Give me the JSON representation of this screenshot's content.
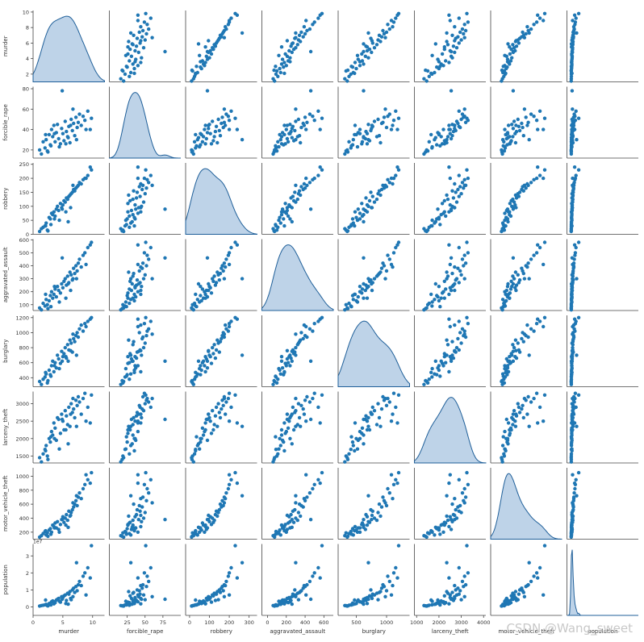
{
  "chart_data": {
    "type": "pairplot",
    "point_color": "#1f77b4",
    "kde_fill": "#a8c4e0",
    "kde_line": "#1f5f99",
    "variables": [
      {
        "name": "murder",
        "range": [
          0,
          12
        ],
        "ticks": [
          0,
          5,
          10
        ],
        "ylabel": "murder",
        "yticks": [
          2,
          4,
          6,
          8,
          10
        ],
        "ylim": [
          1,
          10.2
        ]
      },
      {
        "name": "forcible_rape",
        "range": [
          0,
          100
        ],
        "ticks": [
          25,
          50,
          75
        ],
        "ylabel": "forcible_rape",
        "yticks": [
          20,
          40,
          60,
          80
        ],
        "ylim": [
          12,
          82
        ]
      },
      {
        "name": "robbery",
        "range": [
          -20,
          340
        ],
        "ticks": [
          0,
          100,
          200,
          300
        ],
        "ylabel": "robbery",
        "yticks": [
          0,
          50,
          100,
          150,
          200,
          250
        ],
        "ylim": [
          0,
          255
        ]
      },
      {
        "name": "aggravated_assault",
        "range": [
          -60,
          700
        ],
        "ticks": [
          0,
          200,
          400,
          600
        ],
        "ylabel": "aggravated_assault",
        "yticks": [
          100,
          200,
          300,
          400,
          500,
          600
        ],
        "ylim": [
          55,
          605
        ]
      },
      {
        "name": "burglary",
        "range": [
          200,
          1380
        ],
        "ticks": [
          500,
          1000
        ],
        "ylabel": "burglary",
        "yticks": [
          400,
          600,
          800,
          1000,
          1200
        ],
        "ylim": [
          280,
          1230
        ]
      },
      {
        "name": "larceny_theft",
        "range": [
          900,
          4100
        ],
        "ticks": [
          1000,
          2000,
          3000,
          4000
        ],
        "ylabel": "larceny_theft",
        "yticks": [
          1500,
          2000,
          2500,
          3000
        ],
        "ylim": [
          1300,
          3350
        ]
      },
      {
        "name": "motor_vehicle_theft",
        "range": [
          -100,
          1420
        ],
        "ticks": [],
        "ylabel": "motor_vehicle_theft",
        "yticks": [
          200,
          400,
          600,
          800,
          1000
        ],
        "ylim": [
          100,
          1120
        ]
      },
      {
        "name": "population",
        "range": [
          -2,
          32
        ],
        "ticks": [],
        "ylabel": "population",
        "yticks": [
          0,
          1,
          2,
          3
        ],
        "ylim": [
          -0.5,
          3.7
        ],
        "yoffset_label": "1e7"
      }
    ],
    "data": [
      [
        1.1,
        20,
        10,
        75,
        350,
        1450,
        130,
        0.05
      ],
      [
        1.4,
        16,
        20,
        60,
        310,
        1330,
        150,
        0.08
      ],
      [
        1.7,
        28,
        25,
        110,
        380,
        1560,
        180,
        0.1
      ],
      [
        2.0,
        22,
        30,
        90,
        410,
        1690,
        210,
        0.12
      ],
      [
        2.2,
        30,
        40,
        140,
        450,
        1800,
        160,
        0.15
      ],
      [
        2.4,
        19,
        15,
        100,
        330,
        1500,
        190,
        0.07
      ],
      [
        2.7,
        35,
        60,
        130,
        500,
        2000,
        230,
        0.2
      ],
      [
        2.9,
        25,
        55,
        170,
        440,
        1900,
        250,
        0.22
      ],
      [
        3.1,
        40,
        75,
        200,
        560,
        2200,
        200,
        0.3
      ],
      [
        3.3,
        33,
        70,
        150,
        620,
        2100,
        300,
        0.35
      ],
      [
        3.5,
        44,
        80,
        180,
        480,
        2450,
        280,
        0.18
      ],
      [
        3.7,
        28,
        65,
        220,
        600,
        2300,
        330,
        0.25
      ],
      [
        3.9,
        37,
        90,
        160,
        530,
        1950,
        260,
        0.4
      ],
      [
        4.1,
        45,
        100,
        240,
        700,
        2600,
        350,
        0.45
      ],
      [
        4.3,
        31,
        85,
        210,
        650,
        2550,
        240,
        0.5
      ],
      [
        4.6,
        26,
        110,
        190,
        590,
        2150,
        310,
        0.28
      ],
      [
        4.8,
        41,
        95,
        260,
        750,
        2700,
        380,
        0.6
      ],
      [
        5.0,
        36,
        105,
        230,
        680,
        2500,
        420,
        0.55
      ],
      [
        5.2,
        29,
        120,
        280,
        720,
        2250,
        340,
        0.65
      ],
      [
        5.4,
        48,
        115,
        300,
        800,
        2800,
        400,
        0.7
      ],
      [
        5.6,
        38,
        130,
        250,
        660,
        2650,
        450,
        0.38
      ],
      [
        5.8,
        33,
        125,
        320,
        840,
        2400,
        370,
        0.8
      ],
      [
        6.0,
        43,
        135,
        270,
        770,
        2900,
        500,
        0.75
      ],
      [
        6.2,
        27,
        140,
        350,
        900,
        2350,
        430,
        0.9
      ],
      [
        6.4,
        50,
        145,
        330,
        860,
        3000,
        480,
        0.42
      ],
      [
        6.6,
        39,
        150,
        290,
        740,
        2750,
        520,
        1.0
      ],
      [
        6.8,
        46,
        160,
        380,
        920,
        2850,
        560,
        1.1
      ],
      [
        7.0,
        34,
        155,
        340,
        880,
        2600,
        600,
        0.85
      ],
      [
        7.2,
        52,
        165,
        400,
        960,
        3100,
        650,
        1.2
      ],
      [
        7.4,
        42,
        170,
        360,
        1000,
        2950,
        580,
        0.95
      ],
      [
        7.6,
        47,
        175,
        420,
        940,
        3200,
        700,
        1.3
      ],
      [
        7.8,
        55,
        185,
        450,
        1050,
        3050,
        760,
        1.5
      ],
      [
        8.1,
        44,
        180,
        390,
        1100,
        2700,
        680,
        1.25
      ],
      [
        8.4,
        53,
        195,
        480,
        1020,
        3150,
        820,
        1.8
      ],
      [
        8.7,
        49,
        200,
        500,
        1120,
        3300,
        880,
        2.0
      ],
      [
        9.2,
        58,
        210,
        540,
        1150,
        2900,
        950,
        2.3
      ],
      [
        9.8,
        51,
        230,
        580,
        1200,
        3250,
        1050,
        3.6
      ],
      [
        4.4,
        23,
        50,
        120,
        520,
        1700,
        200,
        0.33
      ],
      [
        5.9,
        32,
        45,
        260,
        620,
        1850,
        270,
        0.16
      ],
      [
        3.0,
        24,
        35,
        85,
        420,
        2050,
        170,
        0.11
      ],
      [
        2.5,
        18,
        12,
        70,
        360,
        1400,
        140,
        0.06
      ],
      [
        6.7,
        60,
        175,
        300,
        980,
        3150,
        620,
        0.6
      ],
      [
        9.6,
        40,
        240,
        560,
        1180,
        2450,
        900,
        1.7
      ],
      [
        4.9,
        78,
        90,
        460,
        620,
        2550,
        380,
        0.45
      ],
      [
        7.3,
        30,
        265,
        300,
        700,
        2350,
        720,
        2.6
      ],
      [
        3.6,
        36,
        55,
        240,
        560,
        2000,
        260,
        0.3
      ],
      [
        8.9,
        40,
        200,
        410,
        1080,
        2500,
        1020,
        0.7
      ],
      [
        5.5,
        26,
        80,
        150,
        680,
        2250,
        300,
        0.2
      ],
      [
        6.3,
        44,
        95,
        210,
        760,
        2700,
        440,
        0.5
      ],
      [
        2.1,
        35,
        30,
        180,
        470,
        1650,
        220,
        0.4
      ]
    ]
  },
  "watermark": "CSDN @Wang_sweet"
}
